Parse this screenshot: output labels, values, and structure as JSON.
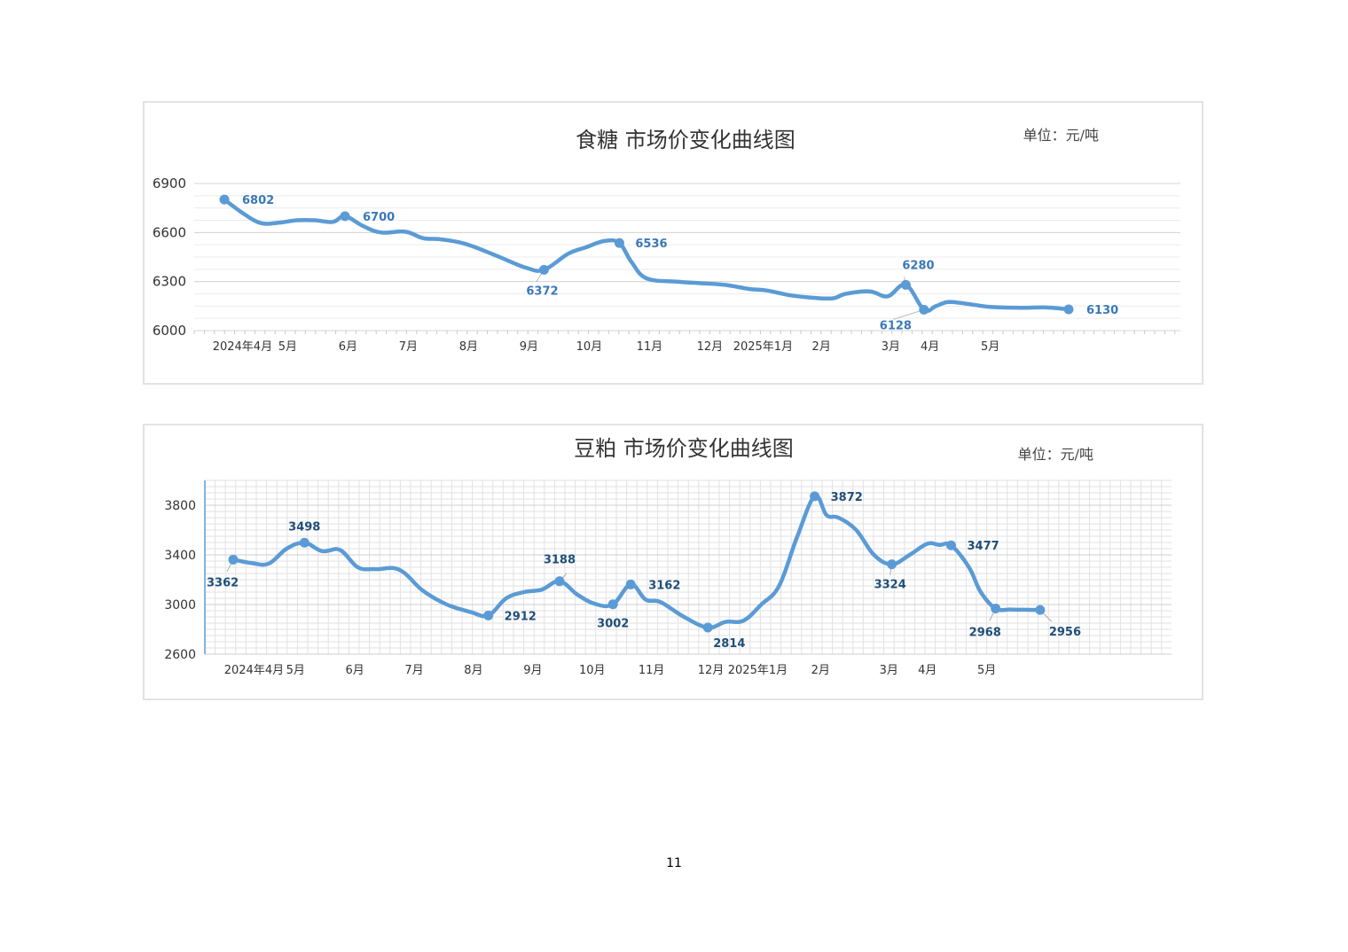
{
  "page": {
    "number": "11"
  },
  "chart_data": [
    {
      "type": "line",
      "title": "食糖 市场价变化曲线图",
      "unit": "单位：元/吨",
      "ylim": [
        6000,
        6900
      ],
      "yticks": [
        "6000",
        "6300",
        "6600",
        "6900"
      ],
      "x_tick_labels": [
        "2024年4月",
        "5月",
        "6月",
        "7月",
        "8月",
        "9月",
        "10月",
        "11月",
        "12月",
        "2025年1月",
        "2月",
        "3月",
        "4月",
        "5月"
      ],
      "color": "#5b9bd5",
      "grid": true,
      "series": [
        {
          "x": [
            0,
            0.3,
            0.6,
            0.9,
            1.2,
            1.5,
            1.8,
            2.0,
            2.3,
            2.6,
            3.0,
            3.3,
            3.6,
            4.0,
            4.5,
            5.0,
            5.3,
            5.7,
            6.0,
            6.3,
            6.55,
            6.75,
            7.0,
            7.5,
            7.9,
            8.3,
            8.7,
            9.0,
            9.4,
            9.8,
            10.1,
            10.3,
            10.7,
            11.0,
            11.3,
            11.6,
            11.8,
            12.0,
            12.3,
            12.7,
            13.2,
            13.6,
            14.0
          ],
          "y": [
            6802,
            6720,
            6658,
            6660,
            6675,
            6675,
            6665,
            6700,
            6640,
            6600,
            6605,
            6565,
            6558,
            6530,
            6460,
            6385,
            6372,
            6470,
            6510,
            6548,
            6536,
            6420,
            6320,
            6300,
            6290,
            6280,
            6255,
            6245,
            6215,
            6200,
            6198,
            6225,
            6240,
            6210,
            6280,
            6128,
            6150,
            6175,
            6165,
            6145,
            6140,
            6142,
            6130
          ]
        }
      ],
      "data_labels": [
        {
          "x": 0,
          "y": 6802,
          "text": "6802"
        },
        {
          "x": 2.0,
          "y": 6700,
          "text": "6700"
        },
        {
          "x": 5.3,
          "y": 6372,
          "text": "6372"
        },
        {
          "x": 6.55,
          "y": 6536,
          "text": "6536"
        },
        {
          "x": 11.3,
          "y": 6280,
          "text": "6280"
        },
        {
          "x": 11.6,
          "y": 6128,
          "text": "6128"
        },
        {
          "x": 14.0,
          "y": 6130,
          "text": "6130"
        }
      ]
    },
    {
      "type": "line",
      "title": "豆粕 市场价变化曲线图",
      "unit": "单位：元/吨",
      "ylim": [
        2600,
        4000
      ],
      "yticks": [
        "2600",
        "3000",
        "3400",
        "3800"
      ],
      "x_tick_labels": [
        "2024年4月",
        "5月",
        "6月",
        "7月",
        "8月",
        "9月",
        "10月",
        "11月",
        "12月",
        "2025年1月",
        "2月",
        "3月",
        "4月",
        "5月"
      ],
      "color": "#5b9bd5",
      "grid": true,
      "series": [
        {
          "x": [
            0,
            0.3,
            0.6,
            0.9,
            1.2,
            1.5,
            1.8,
            2.1,
            2.4,
            2.8,
            3.2,
            3.6,
            4.0,
            4.3,
            4.6,
            4.9,
            5.2,
            5.5,
            5.8,
            6.1,
            6.4,
            6.7,
            6.95,
            7.2,
            7.6,
            8.0,
            8.3,
            8.6,
            8.9,
            9.2,
            9.5,
            9.8,
            10.0,
            10.2,
            10.5,
            10.8,
            11.1,
            11.4,
            11.7,
            11.9,
            12.1,
            12.4,
            12.6,
            12.85,
            13.1,
            13.35,
            13.6
          ],
          "y": [
            3362,
            3335,
            3330,
            3450,
            3498,
            3430,
            3440,
            3300,
            3285,
            3280,
            3110,
            3000,
            2940,
            2912,
            3050,
            3100,
            3120,
            3188,
            3080,
            3005,
            3002,
            3162,
            3040,
            3020,
            2900,
            2814,
            2860,
            2870,
            3000,
            3150,
            3540,
            3872,
            3720,
            3700,
            3600,
            3400,
            3324,
            3400,
            3490,
            3480,
            3477,
            3300,
            3100,
            2968,
            2960,
            2958,
            2956
          ]
        }
      ],
      "data_labels": [
        {
          "x": 0,
          "y": 3362,
          "text": "3362"
        },
        {
          "x": 1.2,
          "y": 3498,
          "text": "3498"
        },
        {
          "x": 4.3,
          "y": 2912,
          "text": "2912"
        },
        {
          "x": 5.5,
          "y": 3188,
          "text": "3188"
        },
        {
          "x": 6.4,
          "y": 3002,
          "text": "3002"
        },
        {
          "x": 6.7,
          "y": 3162,
          "text": "3162"
        },
        {
          "x": 8.0,
          "y": 2814,
          "text": "2814"
        },
        {
          "x": 9.8,
          "y": 3872,
          "text": "3872"
        },
        {
          "x": 11.1,
          "y": 3324,
          "text": "3324"
        },
        {
          "x": 12.1,
          "y": 3477,
          "text": "3477"
        },
        {
          "x": 12.85,
          "y": 2968,
          "text": "2968"
        },
        {
          "x": 13.6,
          "y": 2956,
          "text": "2956"
        }
      ]
    }
  ]
}
